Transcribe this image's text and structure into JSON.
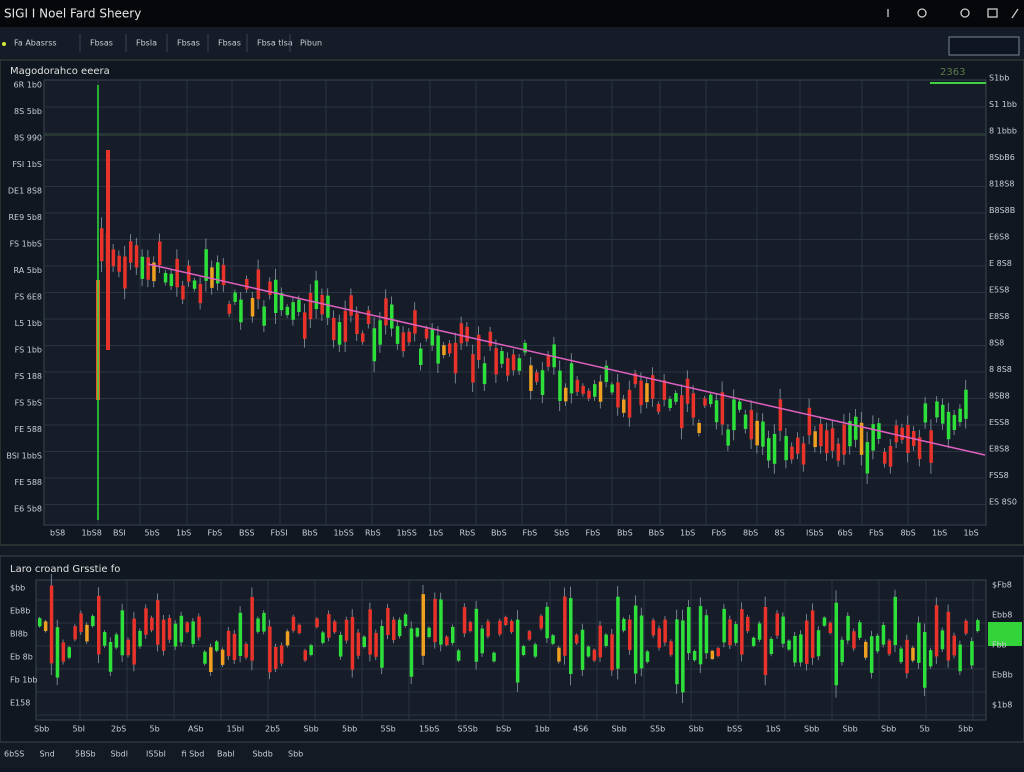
{
  "header": {
    "title": "SIGI I Noel Fard Sheery"
  },
  "toolbar": {
    "tabs": [
      "Fa Abasrss",
      "Fbsas",
      "Fbsla",
      "Fbsas",
      "Fbsas",
      "Fbsa tlsa",
      "Pibun"
    ]
  },
  "main_panel": {
    "title": "Magodorahco eeera",
    "badge": "2363",
    "left_axis": [
      "6R 1b0",
      "8S 5bb",
      "8S 990",
      "FSI 1bS",
      "DE1 8S8",
      "RE9 5b8",
      "FS 1bbS",
      "RA 5bb",
      "FS 6E8",
      "L5 1bb",
      "FS 1bb",
      "FS 188",
      "FS 5bS",
      "FE 588",
      "BSI 1bbS",
      "FE 588",
      "E6 5b8"
    ],
    "right_axis": [
      "S1bb",
      "S1 1bb",
      "8 1bbb",
      "8SbB6",
      "818S8",
      "B8S8B",
      "E6S8",
      "E 8S8",
      "E5S8",
      "E8S8",
      "8S8",
      "8 8S8",
      "8SB8",
      "ESS8",
      "E8S8",
      "FSS8",
      "ES 8S0"
    ],
    "x_axis": [
      "bS8",
      "1bS8",
      "BSI",
      "5bS",
      "1bS",
      "FbS",
      "BSS",
      "FbSI",
      "BbS",
      "1bSS",
      "RbS",
      "1bSS",
      "1bS",
      "RbS",
      "BbS",
      "FbS",
      "SbS",
      "FbS",
      "BbS",
      "BbS",
      "1bS",
      "FbS",
      "8bS",
      "8S",
      "ISbS",
      "6bS",
      "FbS",
      "8bS",
      "1bS",
      "1bS"
    ]
  },
  "lower_panel": {
    "title": "Laro croand Grsstie fo",
    "left_axis": [
      "$bb",
      "Eb8b",
      "Bl8b",
      "Eb 8b",
      "Fb 1bb",
      "E158"
    ],
    "right_axis": [
      "$Fb8",
      "Ebb8",
      "Fbb",
      "EbBb",
      "$1b8"
    ],
    "x_axis": [
      "Sbb",
      "5bI",
      "2bS",
      "5b",
      "ASb",
      "15bI",
      "2b5",
      "Sbb",
      "5bb",
      "5Sb",
      "15bS",
      "S5Sb",
      "bSb",
      "1bb",
      "4S6",
      "Sbb",
      "S5b",
      "Sbb",
      "bSS",
      "1bS",
      "Sbb",
      "Sbb",
      "Sbb",
      "5b",
      "5bb"
    ]
  },
  "footer": {
    "labels": [
      "6bSS",
      "Snd",
      "5BSb",
      "Sbdl",
      "IS5bl",
      "fi Sbd",
      "Babl",
      "Sbdb",
      "Sbb"
    ]
  }
}
